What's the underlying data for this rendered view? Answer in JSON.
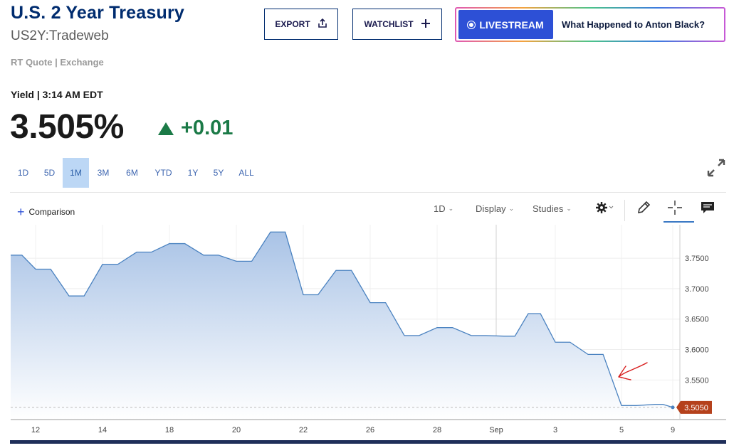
{
  "header": {
    "title": "U.S. 2 Year Treasury",
    "subtitle": "US2Y:Tradeweb",
    "quote_source": "RT Quote | Exchange",
    "export_label": "EXPORT",
    "watchlist_label": "WATCHLIST",
    "livestream_label": "LIVESTREAM",
    "promo_text": "What Happened to Anton Black?"
  },
  "quote": {
    "yield_label": "Yield | 3:14 AM EDT",
    "last": "3.505%",
    "change": "+0.01",
    "change_color": "#1b7a47"
  },
  "ranges": {
    "items": [
      "1D",
      "5D",
      "1M",
      "3M",
      "6M",
      "YTD",
      "1Y",
      "5Y",
      "ALL"
    ],
    "active": "1M"
  },
  "toolbar": {
    "comparison_label": "Comparison",
    "interval_label": "1D",
    "display_label": "Display",
    "studies_label": "Studies",
    "icons": [
      "gear-icon",
      "pencil-icon",
      "crosshair-icon",
      "comment-icon"
    ]
  },
  "chart_data": {
    "type": "area",
    "x": [
      "Aug 11",
      "Aug 12",
      "Aug 13",
      "Aug 14",
      "Aug 15",
      "Aug 16",
      "Aug 18",
      "Aug 19",
      "Aug 20",
      "Aug 21",
      "Aug 22",
      "Aug 25",
      "Aug 26",
      "Aug 27",
      "Aug 28",
      "Aug 29",
      "Sep 2",
      "Sep 3",
      "Sep 4",
      "Sep 5",
      "Sep 8",
      "Sep 9"
    ],
    "values": [
      3.755,
      3.732,
      3.688,
      3.74,
      3.76,
      3.774,
      3.755,
      3.745,
      3.793,
      3.69,
      3.73,
      3.677,
      3.623,
      3.636,
      3.623,
      3.622,
      3.659,
      3.612,
      3.592,
      3.508,
      3.51,
      3.505
    ],
    "x_tick_labels": [
      "12",
      "14",
      "18",
      "20",
      "22",
      "26",
      "28",
      "Sep",
      "3",
      "5",
      "9"
    ],
    "y_tick_labels": [
      "3.7500",
      "3.7000",
      "3.6500",
      "3.6000",
      "3.5500"
    ],
    "ylim": [
      3.485,
      3.805
    ],
    "last_value_label": "3.5050",
    "line_color": "#4a82c0",
    "fill_top_color": "#a9c3e6",
    "last_label_color": "#b5411c",
    "grid": true
  },
  "annotation": {
    "type": "hand-drawn-arrow",
    "color": "#d81f1f"
  }
}
